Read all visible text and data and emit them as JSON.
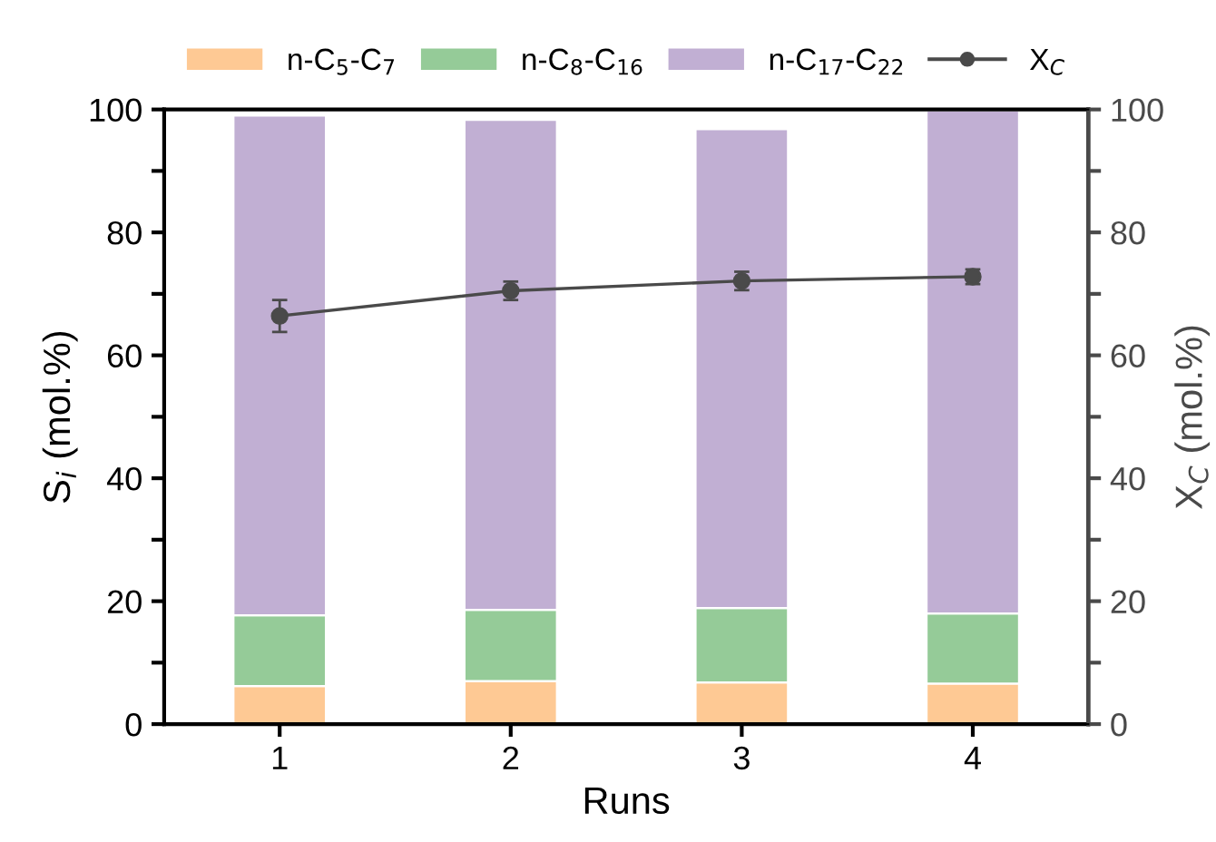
{
  "chart_data": {
    "type": "bar",
    "stacked": true,
    "xlabel": "Runs",
    "ylabel": "S$_{i}$ (mol.%)",
    "y2label": "X$_{C}$ (mol.%)",
    "categories": [
      "1",
      "2",
      "3",
      "4"
    ],
    "series": [
      {
        "name": "n-C$_{5}$-C$_{7}$",
        "color": "#fec994",
        "values": [
          6.2,
          7.0,
          6.8,
          6.6
        ]
      },
      {
        "name": "n-C$_{8}$-C$_{16}$",
        "color": "#95cb98",
        "values": [
          11.5,
          11.6,
          12.1,
          11.4
        ]
      },
      {
        "name": "n-C$_{17}$-C$_{22}$",
        "color": "#c1afd3",
        "values": [
          81.3,
          79.7,
          77.9,
          81.8
        ]
      },
      {
        "name": "X$_{C}$",
        "type": "line",
        "axis": "y2",
        "color": "#4a4a4a",
        "marker": "circle",
        "values": [
          66.4,
          70.5,
          72.1,
          72.8
        ],
        "errors": [
          2.6,
          1.5,
          1.5,
          1.2
        ]
      }
    ],
    "ylim": [
      0,
      100
    ],
    "yticks": [
      0,
      {
        "value": 10,
        "label": null
      },
      20,
      {
        "value": 30,
        "label": null
      },
      40,
      {
        "value": 50,
        "label": null
      },
      60,
      {
        "value": 70,
        "label": null
      },
      80,
      {
        "value": 90,
        "label": null
      },
      100
    ],
    "y2lim": [
      0,
      100
    ],
    "y2ticks": [
      0,
      {
        "value": 10,
        "label": null
      },
      20,
      {
        "value": 30,
        "label": null
      },
      40,
      {
        "value": 50,
        "label": null
      },
      60,
      {
        "value": 70,
        "label": null
      },
      80,
      {
        "value": 90,
        "label": null
      },
      100
    ],
    "grid": false,
    "legend": "top"
  }
}
